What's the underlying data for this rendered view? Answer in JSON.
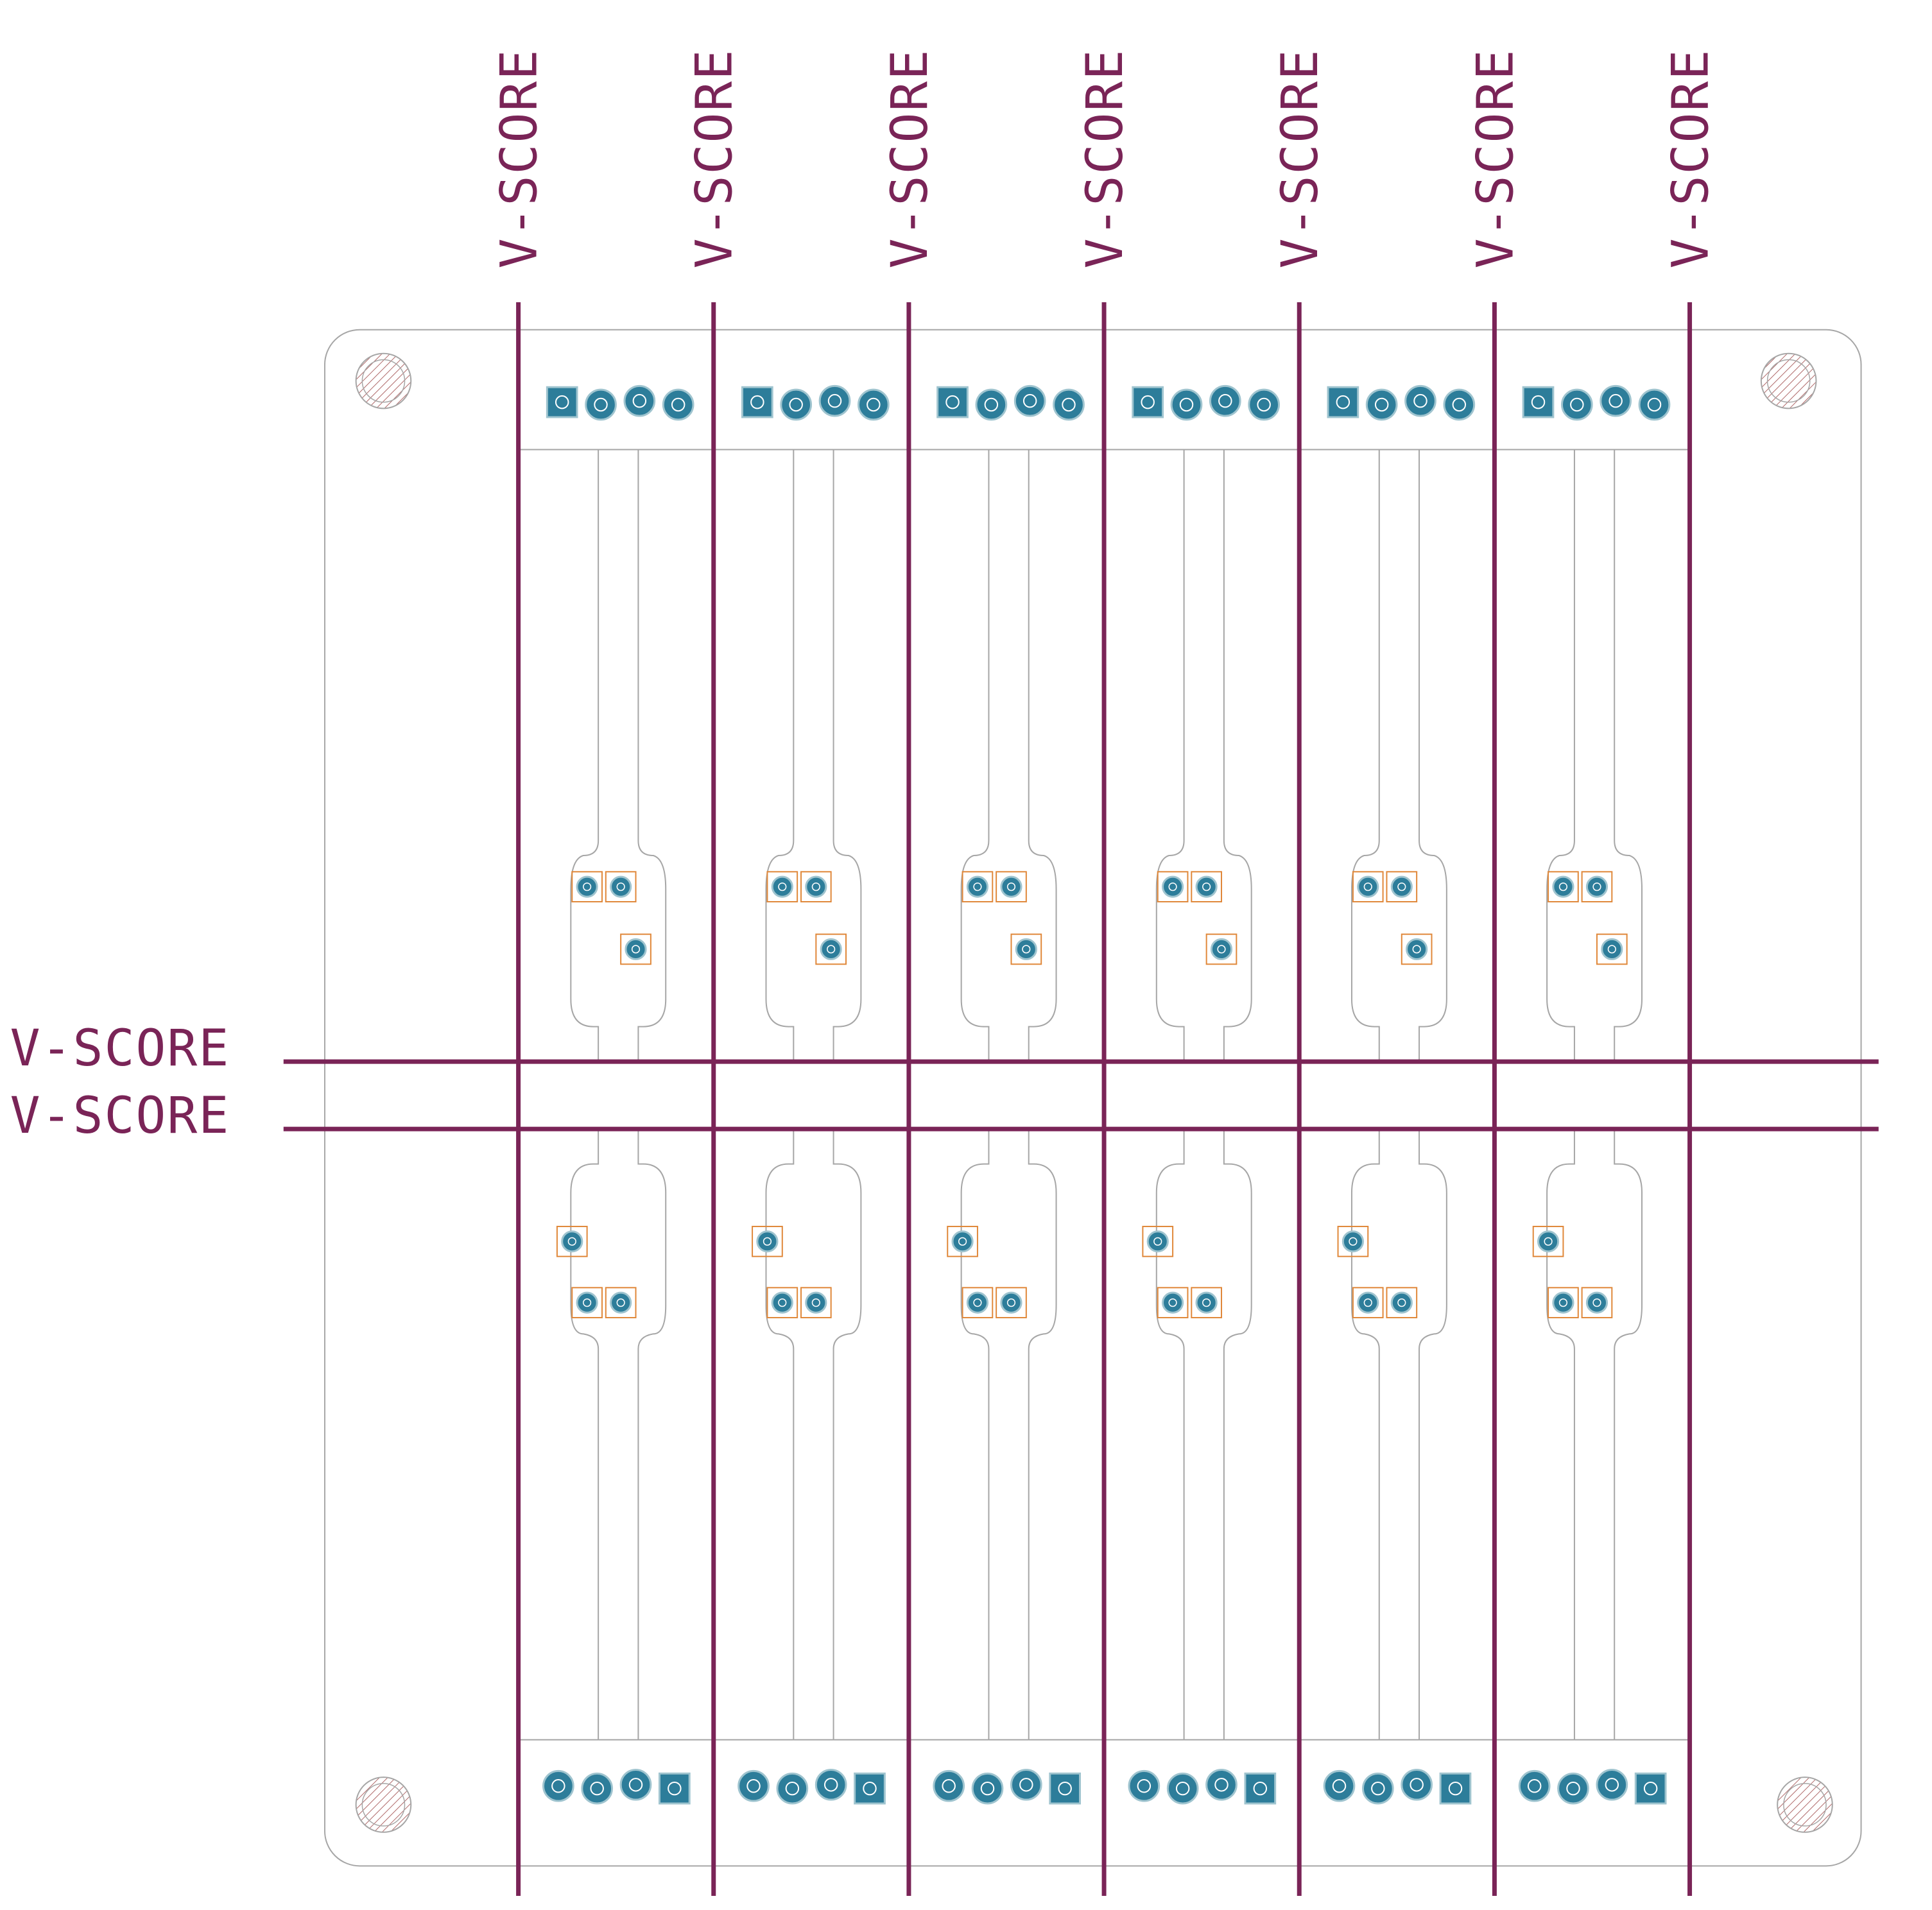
{
  "score_label": "V-SCORE",
  "colors": {
    "background": "#ffffff",
    "outline": "#a6a6a6",
    "score_line": "#7a2457",
    "score_text": "#7a2457",
    "pad_fill": "#2d7d9a",
    "pad_ring": "#9fc4cf",
    "silk": "#e0883a",
    "hatch": "#b06a6a"
  },
  "panel": {
    "columns": 6,
    "rows": 2,
    "vertical_scores": 7,
    "horizontal_scores": 2,
    "mounting_holes": 4,
    "header_pins_per_board": 4,
    "small_pads_per_board": 3
  },
  "icons": {
    "mounting_hole": "hatched-circle",
    "square_pad": "square-pad-icon",
    "round_pad": "round-pad-icon"
  }
}
